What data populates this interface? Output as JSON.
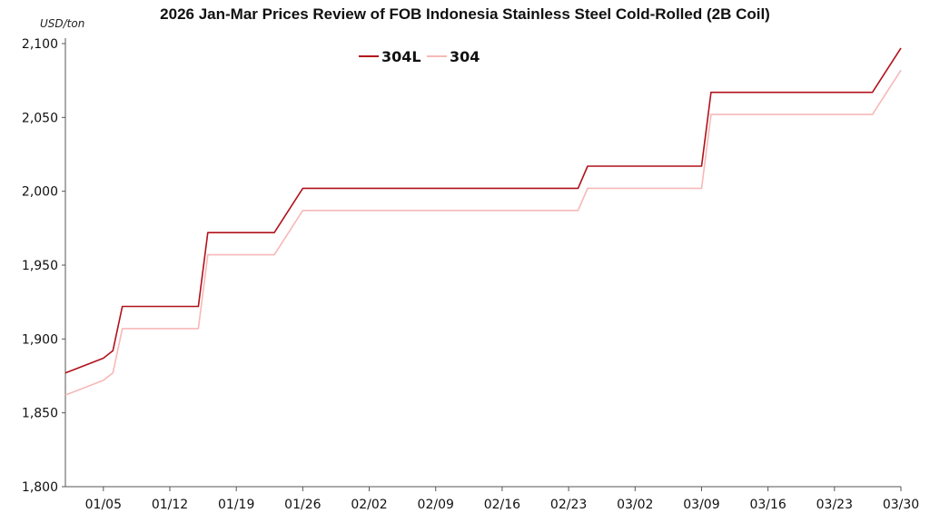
{
  "chart_data": {
    "type": "line",
    "title": "2026 Jan-Mar Prices Review of FOB Indonesia Stainless Steel Cold-Rolled (2B Coil)",
    "ylabel": "USD/ton",
    "xlabel": "",
    "ylim": [
      1800,
      2100
    ],
    "yticks": [
      "1,800",
      "1,850",
      "1,900",
      "1,950",
      "2,000",
      "2,050",
      "2,100"
    ],
    "x_tick_labels": [
      "01/05",
      "01/12",
      "01/19",
      "01/26",
      "02/02",
      "02/09",
      "02/16",
      "02/23",
      "03/02",
      "03/09",
      "03/16",
      "03/23",
      "03/30"
    ],
    "x_range": [
      "2026-01-01",
      "2026-03-30"
    ],
    "grid": false,
    "legend_position": "top-center",
    "series": [
      {
        "name": "304L",
        "color": "#b0121b",
        "points": [
          [
            "2026-01-01",
            1877
          ],
          [
            "2026-01-05",
            1887
          ],
          [
            "2026-01-06",
            1892
          ],
          [
            "2026-01-07",
            1922
          ],
          [
            "2026-01-15",
            1922
          ],
          [
            "2026-01-16",
            1972
          ],
          [
            "2026-01-23",
            1972
          ],
          [
            "2026-01-26",
            2002
          ],
          [
            "2026-02-24",
            2002
          ],
          [
            "2026-02-25",
            2017
          ],
          [
            "2026-03-09",
            2017
          ],
          [
            "2026-03-10",
            2067
          ],
          [
            "2026-03-27",
            2067
          ],
          [
            "2026-03-30",
            2097
          ]
        ]
      },
      {
        "name": "304",
        "color": "#f7b8b8",
        "points": [
          [
            "2026-01-01",
            1862
          ],
          [
            "2026-01-05",
            1872
          ],
          [
            "2026-01-06",
            1877
          ],
          [
            "2026-01-07",
            1907
          ],
          [
            "2026-01-15",
            1907
          ],
          [
            "2026-01-16",
            1957
          ],
          [
            "2026-01-23",
            1957
          ],
          [
            "2026-01-26",
            1987
          ],
          [
            "2026-02-24",
            1987
          ],
          [
            "2026-02-25",
            2002
          ],
          [
            "2026-03-09",
            2002
          ],
          [
            "2026-03-10",
            2052
          ],
          [
            "2026-03-27",
            2052
          ],
          [
            "2026-03-30",
            2082
          ]
        ]
      }
    ]
  }
}
